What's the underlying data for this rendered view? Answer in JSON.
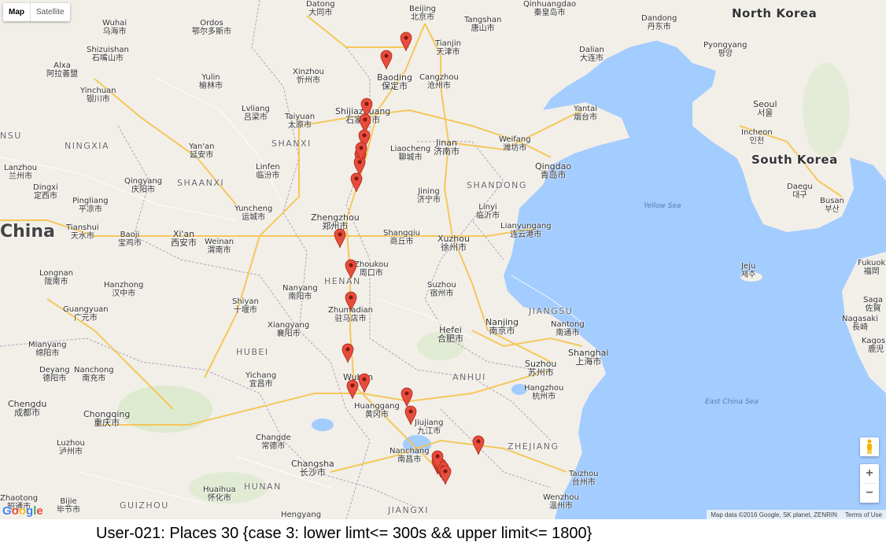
{
  "map_type": {
    "map_label": "Map",
    "satellite_label": "Satellite",
    "selected": "Map"
  },
  "controls": {
    "zoom_in": "+",
    "zoom_out": "−",
    "pegman_icon": "pegman-icon"
  },
  "attribution": {
    "map_data": "Map data ©2016 Google, SK planet, ZENRIN",
    "terms": "Terms of Use"
  },
  "logo": "Google",
  "caption": "User-021: Places 30 {case 3: lower limt<= 300s && upper limit<= 1800}",
  "colors": {
    "water": "#a3ccff",
    "land": "#f2efe9",
    "highway": "#f6c34a",
    "marker": "#e74c3c"
  },
  "labels": {
    "datong": "Datong\n大同市",
    "beijing": "Beijing\n北京市",
    "tangshan": "Tangshan\n唐山市",
    "qinhuangdao": "Qinhuangdao\n秦皇岛市",
    "dandong": "Dandong\n丹东市",
    "north_korea": "North Korea",
    "wuhai": "Wuhai\n乌海市",
    "ordos": "Ordos\n鄂尔多斯市",
    "tianjin": "Tianjin\n天津市",
    "dalian": "Dalian\n大连市",
    "pyongyang": "Pyongyang\n평양",
    "shizuishan": "Shizuishan\n石嘴山市",
    "alxa": "Alxa\n阿拉善盟",
    "xinzhou": "Xinzhou\n忻州市",
    "baoding": "Baoding\n保定市",
    "cangzhou": "Cangzhou\n沧州市",
    "yulin": "Yulin\n榆林市",
    "yinchuan": "Yinchuan\n银川市",
    "yantai": "Yantai\n烟台市",
    "seoul": "Seoul\n서울",
    "lvliang": "Lvliang\n吕梁市",
    "taiyuan": "Taiyuan\n太原市",
    "shijiazhuang": "Shijiazhuang\n石家庄市",
    "incheon": "Incheon\n인천",
    "nsu": "NSU",
    "ningxia": "NINGXIA",
    "yanan": "Yan'an\n延安市",
    "shanxi": "SHANXI",
    "liaocheng": "Liaocheng\n聊城市",
    "jinan": "Jinan\n济南市",
    "weifang": "Weifang\n潍坊市",
    "south_korea": "South Korea",
    "lanzhou": "Lanzhou\n兰州市",
    "linfen": "Linfen\n临汾市",
    "qingdao": "Qingdao\n青岛市",
    "qingyang": "Qingyang\n庆阳市",
    "shaanxi": "SHAANXI",
    "shandong": "SHANDONG",
    "daegu": "Daegu\n대구",
    "dingxi": "Dingxi\n定西市",
    "jining": "Jining\n济宁市",
    "busan": "Busan\n부산",
    "pingliang": "Pingliang\n平凉市",
    "yuncheng": "Yuncheng\n运城市",
    "linyi": "Linyi\n临沂市",
    "yellow_sea": "Yellow Sea",
    "zhengzhou": "Zhengzhou\n郑州市",
    "tianshui": "Tianshui\n天水市",
    "china": "China",
    "baoji": "Baoji\n宝鸡市",
    "xian": "Xi'an\n西安市",
    "weinan": "Weinan\n渭南市",
    "shangqiu": "Shangqiu\n商丘市",
    "lianyungang": "Lianyungang\n连云港市",
    "xuzhou": "Xuzhou\n徐州市",
    "zhoukou": "Zhoukou\n周口市",
    "jeju": "Jeju\n제주",
    "fukuoka": "Fukuok\n福岡",
    "longnan": "Longnan\n陇南市",
    "henan": "HENAN",
    "hanzhong": "Hanzhong\n汉中市",
    "nanyang": "Nanyang\n南阳市",
    "suzhou_anhui": "Suzhou\n宿州市",
    "saga": "Saga\n佐賀",
    "shiyan": "Shiyan\n十堰市",
    "guangyuan": "Guangyuan\n广元市",
    "zhumadian": "Zhumadian\n驻马店市",
    "jiangsu": "JIANGSU",
    "nanjing": "Nanjing\n南京市",
    "nantong": "Nantong\n南通市",
    "nagasaki": "Nagasaki\n長崎",
    "xiangyang": "Xiangyang\n襄阳市",
    "hefei": "Hefei\n合肥市",
    "kagoshima": "Kagosh\n鹿児",
    "mianyang": "Mianyang\n绵阳市",
    "hubei": "HUBEI",
    "shanghai": "Shanghai\n上海市",
    "deyang": "Deyang\n德阳市",
    "nanchong": "Nanchong\n南充市",
    "suzhou_jiangsu": "Suzhou\n苏州市",
    "yichang": "Yichang\n宜昌市",
    "wuhan": "Wuhan",
    "anhui": "ANHUI",
    "hangzhou": "Hangzhou\n杭州市",
    "chengdu": "Chengdu\n成都市",
    "huanggang": "Huanggang\n黄冈市",
    "east_china_sea": "East China Sea",
    "chongqing": "Chongqing\n重庆市",
    "jiujiang": "Jiujiang\n九江市",
    "changde": "Changde\n常德市",
    "luzhou": "Luzhou\n泸州市",
    "zhejiang": "ZHEJIANG",
    "nanchang": "Nanchang\n南昌市",
    "changsha": "Changsha\n长沙市",
    "taizhou": "Taizhou\n台州市",
    "huaihua": "Huaihua\n怀化市",
    "hunan": "HUNAN",
    "zhaotong": "Zhaotong\n昭通市",
    "bijie": "Bijie\n毕节市",
    "guizhou": "GUIZHOU",
    "jiangxi": "JIANGXI",
    "wenzhou": "Wenzhou\n温州市",
    "hengyang": "Hengyang"
  },
  "markers": [
    {
      "name": "place-1"
    },
    {
      "name": "place-2"
    },
    {
      "name": "place-3"
    },
    {
      "name": "place-4"
    },
    {
      "name": "place-5"
    },
    {
      "name": "place-6"
    },
    {
      "name": "place-7"
    },
    {
      "name": "place-8"
    },
    {
      "name": "place-9"
    },
    {
      "name": "place-10"
    },
    {
      "name": "place-11"
    },
    {
      "name": "place-12"
    },
    {
      "name": "place-13"
    },
    {
      "name": "place-14"
    },
    {
      "name": "place-15"
    },
    {
      "name": "place-16"
    },
    {
      "name": "place-17"
    },
    {
      "name": "place-18"
    },
    {
      "name": "place-19"
    },
    {
      "name": "place-20"
    },
    {
      "name": "place-21"
    },
    {
      "name": "place-22"
    },
    {
      "name": "place-23"
    }
  ]
}
